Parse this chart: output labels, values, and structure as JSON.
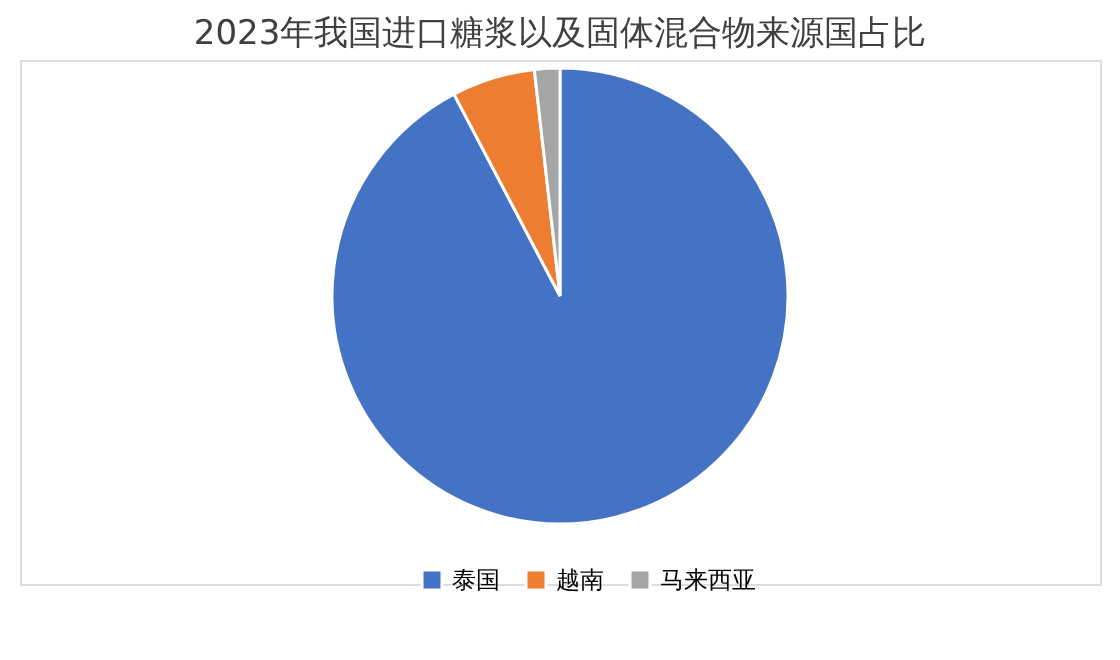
{
  "chart_data": {
    "type": "pie",
    "title": "2023年我国进口糖浆以及固体混合物来源国占比",
    "categories": [
      "泰国",
      "越南",
      "马来西亚"
    ],
    "values": [
      92.3,
      5.9,
      1.8
    ],
    "colors": [
      "#4472c4",
      "#ed7d31",
      "#a5a5a5"
    ],
    "legend": "bottom"
  }
}
